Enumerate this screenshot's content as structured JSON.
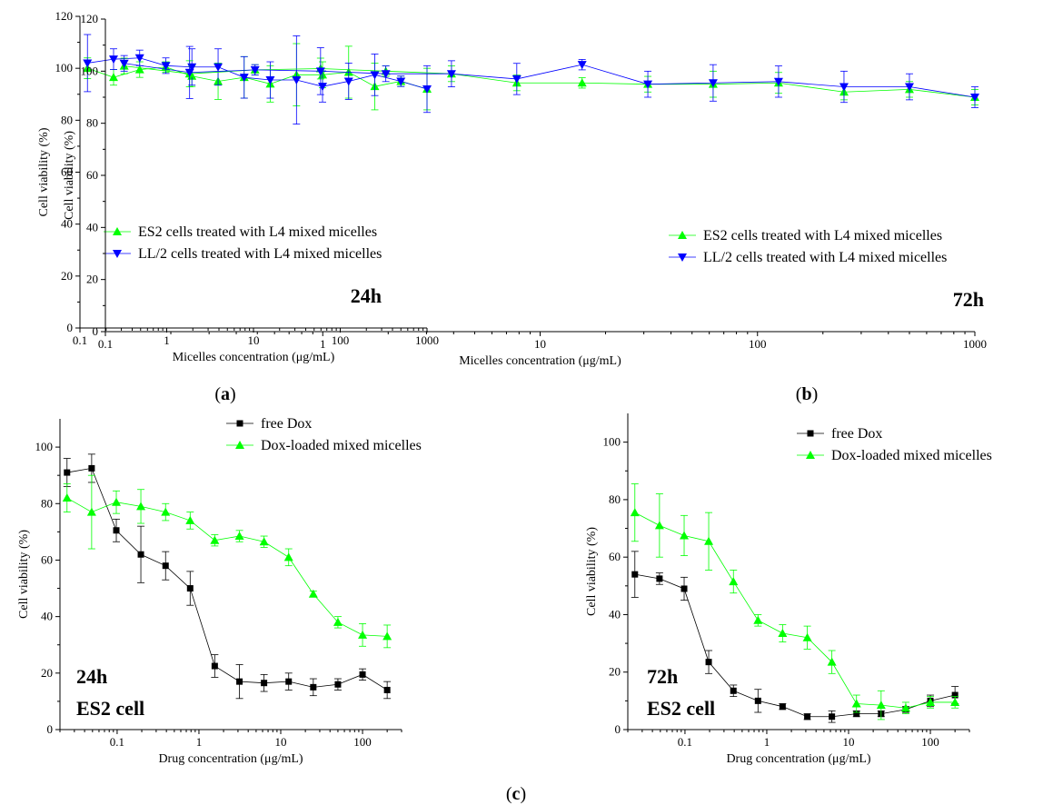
{
  "chart_data": [
    {
      "type": "line",
      "panel": "(a)",
      "xscale": "log",
      "xlim": [
        0.1,
        1000
      ],
      "ylim": [
        0,
        120
      ],
      "xticks": [
        0.1,
        1,
        10,
        100,
        1000
      ],
      "xtick_labels": [
        "0.1",
        "1",
        "10",
        "100",
        "1000"
      ],
      "yticks": [
        0,
        20,
        40,
        60,
        80,
        100,
        120
      ],
      "xlabel": "Micelles concentration (μg/mL)",
      "ylabel": "Cell viability (%)",
      "annotation": [
        "24h"
      ],
      "legend_position": "center-left",
      "x": [
        0.122,
        0.244,
        0.488,
        0.977,
        1.95,
        3.91,
        7.81,
        15.6,
        31.3,
        62.5,
        125,
        250,
        500,
        1000
      ],
      "series": [
        {
          "name": "ES2 cells treated with L4 mixed micelles",
          "color": "#00ff00",
          "marker": "triangle-up",
          "values": [
            100,
            96.5,
            99.5,
            100.5,
            97,
            95,
            96.5,
            94,
            97.5,
            97.5,
            98.5,
            93,
            95,
            92
          ],
          "errors": [
            4,
            3,
            3,
            2,
            4,
            7,
            8,
            7,
            12,
            5,
            10,
            9,
            2,
            8
          ]
        },
        {
          "name": "LL/2 cells treated with L4 mixed micelles",
          "color": "#0000ff",
          "marker": "triangle-down",
          "values": [
            102,
            103.5,
            104,
            101,
            100.5,
            100.5,
            96.5,
            95.5,
            95.5,
            93,
            95,
            97.5,
            95,
            92
          ],
          "errors": [
            11,
            4,
            3,
            3,
            7,
            7,
            8,
            7,
            17,
            6,
            7,
            8,
            2,
            9
          ]
        }
      ]
    },
    {
      "type": "line",
      "panel": "(b)",
      "xscale": "log",
      "xlim": [
        0.1,
        1000
      ],
      "ylim": [
        0,
        120
      ],
      "xticks": [
        0.1,
        1,
        10,
        100,
        1000
      ],
      "xtick_labels": [
        "0.1",
        "1",
        "10",
        "100",
        "1000"
      ],
      "yticks": [
        0,
        20,
        40,
        60,
        80,
        100,
        120
      ],
      "xlabel": "Micelles concentration (μg/mL)",
      "ylabel": "Cell viability (%)",
      "annotation": [
        "72h"
      ],
      "legend_position": "center-left",
      "x": [
        0.122,
        0.244,
        0.488,
        0.977,
        1.95,
        3.91,
        7.81,
        15.6,
        31.3,
        62.5,
        125,
        250,
        500,
        1000
      ],
      "series": [
        {
          "name": "ES2 cells treated with L4 mixed micelles",
          "color": "#00ff00",
          "marker": "triangle-up",
          "values": [
            102,
            99,
            100.5,
            101,
            100,
            99,
            95.5,
            95.5,
            95,
            95,
            95.5,
            92,
            93,
            90
          ],
          "errors": [
            3,
            5,
            2,
            4,
            2,
            3,
            3,
            2,
            3,
            5,
            4,
            3,
            3,
            3
          ]
        },
        {
          "name": "LL/2 cells treated with L4 mixed micelles",
          "color": "#0000ff",
          "marker": "triangle-down",
          "values": [
            103,
            99.5,
            100.5,
            100,
            99,
            99,
            97,
            102.5,
            95,
            95.5,
            96,
            94,
            94,
            90
          ],
          "errors": [
            3,
            10,
            2,
            9,
            3,
            5,
            6,
            2,
            5,
            7,
            6,
            6,
            5,
            4
          ]
        }
      ]
    },
    {
      "type": "line",
      "panel": "(c)",
      "xscale": "log",
      "xlim": [
        0.02,
        300
      ],
      "ylim": [
        0,
        110
      ],
      "xticks": [
        0.1,
        1,
        10,
        100
      ],
      "xtick_labels": [
        "0.1",
        "1",
        "10",
        "100"
      ],
      "yticks": [
        0,
        20,
        40,
        60,
        80,
        100
      ],
      "xlabel": "Drug concentration (μg/mL)",
      "ylabel": "Cell viability (%)",
      "annotation": [
        "24h",
        "ES2 cell"
      ],
      "legend_position": "top-right",
      "x": [
        0.0244,
        0.0488,
        0.0977,
        0.195,
        0.391,
        0.781,
        1.56,
        3.13,
        6.25,
        12.5,
        25,
        50,
        100,
        200
      ],
      "series": [
        {
          "name": "free Dox",
          "color": "#000000",
          "marker": "square",
          "values": [
            91,
            92.5,
            70.5,
            62,
            58,
            50,
            22.5,
            17,
            16.5,
            17,
            15,
            16,
            19.5,
            14
          ],
          "errors": [
            5,
            5,
            4,
            10,
            5,
            6,
            4,
            6,
            3,
            3,
            3,
            2,
            2,
            3
          ]
        },
        {
          "name": "Dox-loaded mixed micelles",
          "color": "#00ff00",
          "marker": "triangle-up",
          "values": [
            82,
            77,
            80.5,
            79,
            77,
            74,
            67,
            68.5,
            66.5,
            61,
            48,
            38,
            33.5,
            33
          ],
          "errors": [
            5,
            13,
            4,
            6,
            3,
            3,
            2,
            2,
            2,
            3,
            1,
            2,
            4,
            4
          ]
        }
      ]
    },
    {
      "type": "line",
      "panel": "",
      "xscale": "log",
      "xlim": [
        0.02,
        300
      ],
      "ylim": [
        0,
        110
      ],
      "xticks": [
        0.1,
        1,
        10,
        100
      ],
      "xtick_labels": [
        "0.1",
        "1",
        "10",
        "100"
      ],
      "yticks": [
        0,
        20,
        40,
        60,
        80,
        100
      ],
      "xlabel": "Drug concentration (μg/mL)",
      "ylabel": "Cell viability (%)",
      "annotation": [
        "72h",
        "ES2 cell"
      ],
      "legend_position": "top-right",
      "x": [
        0.0244,
        0.0488,
        0.0977,
        0.195,
        0.391,
        0.781,
        1.56,
        3.13,
        6.25,
        12.5,
        25,
        50,
        100,
        200
      ],
      "series": [
        {
          "name": "free Dox",
          "color": "#000000",
          "marker": "square",
          "values": [
            54,
            52.5,
            49,
            23.5,
            13.5,
            10,
            8,
            4.5,
            4.5,
            5.5,
            5.5,
            7,
            10,
            12
          ],
          "errors": [
            8,
            2,
            4,
            4,
            2,
            4,
            1,
            1,
            2,
            1,
            1,
            1,
            2,
            3
          ]
        },
        {
          "name": "Dox-loaded mixed micelles",
          "color": "#00ff00",
          "marker": "triangle-up",
          "values": [
            75.5,
            71,
            67.5,
            65.5,
            51.5,
            38,
            33.5,
            32,
            23.5,
            9,
            8.5,
            7.5,
            9.5,
            9.5
          ],
          "errors": [
            10,
            11,
            7,
            10,
            4,
            2,
            3,
            4,
            4,
            3,
            5,
            2,
            2,
            2
          ]
        }
      ]
    }
  ]
}
